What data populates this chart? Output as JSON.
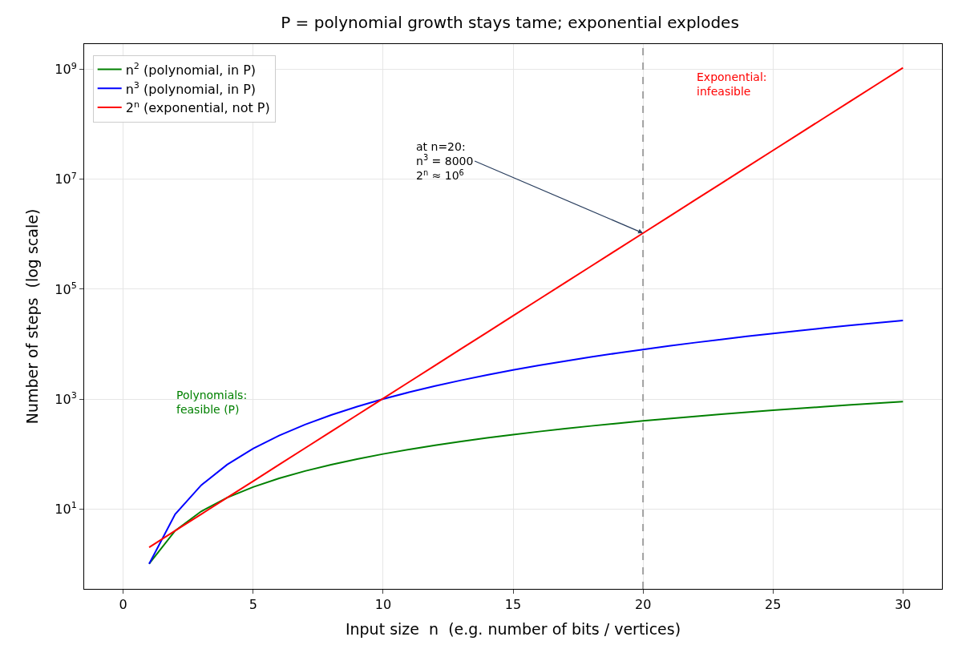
{
  "chart_data": {
    "type": "line",
    "title": "P = polynomial growth stays tame; exponential explodes",
    "xlabel": "Input size  n  (e.g. number of bits / vertices)",
    "ylabel": "Number of steps  (log scale)",
    "x": [
      1,
      2,
      3,
      4,
      5,
      6,
      7,
      8,
      9,
      10,
      11,
      12,
      13,
      14,
      15,
      16,
      17,
      18,
      19,
      20,
      21,
      22,
      23,
      24,
      25,
      26,
      27,
      28,
      29,
      30
    ],
    "series": [
      {
        "name": "n$^{2}$ (polynomial, in P)",
        "color": "#008000",
        "values": [
          1,
          4,
          9,
          16,
          25,
          36,
          49,
          64,
          81,
          100,
          121,
          144,
          169,
          196,
          225,
          256,
          289,
          324,
          361,
          400,
          441,
          484,
          529,
          576,
          625,
          676,
          729,
          784,
          841,
          900
        ]
      },
      {
        "name": "n$^{3}$ (polynomial, in P)",
        "color": "#0000ff",
        "values": [
          1,
          8,
          27,
          64,
          125,
          216,
          343,
          512,
          729,
          1000,
          1331,
          1728,
          2197,
          2744,
          3375,
          4096,
          4913,
          5832,
          6859,
          8000,
          9261,
          10648,
          12167,
          13824,
          15625,
          17576,
          19683,
          21952,
          24389,
          27000
        ]
      },
      {
        "name": "2$^{n}$ (exponential, not P)",
        "color": "#ff0000",
        "values": [
          2,
          4,
          8,
          16,
          32,
          64,
          128,
          256,
          512,
          1024,
          2048,
          4096,
          8192,
          16384,
          32768,
          65536,
          131072,
          262144,
          524288,
          1048576,
          2097152,
          4194304,
          8388608,
          16777216,
          33554432,
          67108864,
          134217728,
          268435456,
          536870912,
          1073741824
        ]
      }
    ],
    "log": "y",
    "xlim": [
      -1.5,
      31.5
    ],
    "ylim": [
      0.35,
      2900000000
    ],
    "xticks": [
      0,
      5,
      10,
      15,
      20,
      25,
      30
    ],
    "yticks": [
      {
        "value": 10,
        "label": "10$^{1}$"
      },
      {
        "value": 1000,
        "label": "10$^{3}$"
      },
      {
        "value": 100000,
        "label": "10$^{5}$"
      },
      {
        "value": 10000000,
        "label": "10$^{7}$"
      },
      {
        "value": 1000000000,
        "label": "10$^{9}$"
      }
    ],
    "ref_lines": [
      {
        "axis": "x",
        "value": 20,
        "color": "#a0a0a0",
        "line_style": "dashed"
      }
    ],
    "annotations": [
      {
        "text": "at n=20:\nn$^{3}$ = 8000\n2$^{n}$ ≈ 10$^{6}$",
        "x": 20,
        "y": 1048576
      },
      "Polynomials:\nfeasible (P)",
      "Exponential:\ninfeasible"
    ],
    "grid": true,
    "legend": "top left",
    "marker": "none",
    "line_style": "solid"
  }
}
